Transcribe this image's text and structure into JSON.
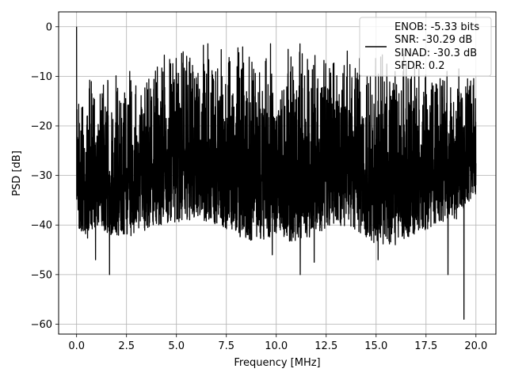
{
  "chart_data": {
    "type": "line",
    "title": "",
    "xlabel": "Frequency [MHz]",
    "ylabel": "PSD [dB]",
    "xlim": [
      -0.9,
      21.0
    ],
    "ylim": [
      -62,
      3
    ],
    "xticks": [
      0.0,
      2.5,
      5.0,
      7.5,
      10.0,
      12.5,
      15.0,
      17.5,
      20.0
    ],
    "xtick_labels": [
      "0.0",
      "2.5",
      "5.0",
      "7.5",
      "10.0",
      "12.5",
      "15.0",
      "17.5",
      "20.0"
    ],
    "yticks": [
      0,
      -10,
      -20,
      -30,
      -40,
      -50,
      -60
    ],
    "ytick_labels": [
      "0",
      "−10",
      "−20",
      "−30",
      "−40",
      "−50",
      "−60"
    ],
    "grid": true,
    "legend_position": "top-right",
    "legend_lines": [
      "ENOB: -5.33 bits",
      "SNR: -30.29 dB",
      "SINAD: -30.3 dB",
      "SFDR: 0.2"
    ],
    "series": [
      {
        "color": "#000000",
        "x_range": [
          0.0,
          20.0
        ],
        "envelope": {
          "x": [
            0.0,
            0.1,
            0.5,
            1.0,
            2.0,
            3.0,
            4.0,
            5.0,
            6.0,
            7.0,
            8.0,
            9.0,
            10.0,
            11.0,
            12.0,
            13.0,
            14.0,
            15.0,
            16.0,
            17.0,
            18.0,
            19.0,
            20.0
          ],
          "upper": [
            0.0,
            -9.0,
            -10.0,
            -9.5,
            -9.0,
            -7.5,
            -5.5,
            -4.0,
            -3.5,
            -3.0,
            -3.0,
            -3.0,
            -3.0,
            -3.0,
            -3.0,
            -3.0,
            -3.5,
            -4.0,
            -5.0,
            -6.0,
            -7.0,
            -8.0,
            -8.5
          ],
          "lower": [
            -36.0,
            -42.0,
            -43.0,
            -40.0,
            -43.0,
            -42.0,
            -40.0,
            -40.0,
            -39.0,
            -40.0,
            -42.0,
            -44.0,
            -42.0,
            -44.0,
            -42.0,
            -40.0,
            -41.0,
            -44.0,
            -44.0,
            -42.0,
            -40.0,
            -39.0,
            -34.0
          ]
        },
        "peaks": [
          {
            "x": 0.0,
            "y": 0.0
          },
          {
            "x": 1.65,
            "y": -50.0
          },
          {
            "x": 0.95,
            "y": -47.0
          },
          {
            "x": 9.8,
            "y": -46.0
          },
          {
            "x": 11.2,
            "y": -50.0
          },
          {
            "x": 11.9,
            "y": -47.5
          },
          {
            "x": 15.1,
            "y": -47.0
          },
          {
            "x": 18.6,
            "y": -50.0
          },
          {
            "x": 19.4,
            "y": -59.0
          }
        ]
      }
    ]
  }
}
